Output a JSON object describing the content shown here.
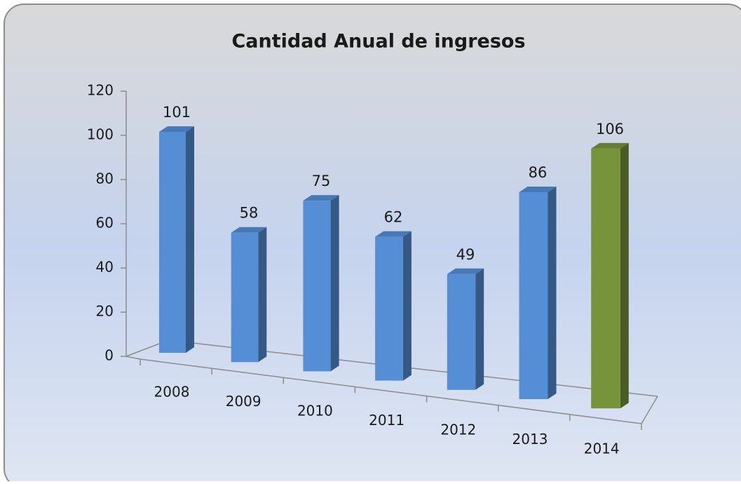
{
  "chart_data": {
    "type": "bar3d",
    "title": "Cantidad Anual de ingresos",
    "categories": [
      "2008",
      "2009",
      "2010",
      "2011",
      "2012",
      "2013",
      "2014"
    ],
    "values": [
      101,
      58,
      75,
      62,
      49,
      86,
      106
    ],
    "colors": [
      "#558ed5",
      "#558ed5",
      "#558ed5",
      "#558ed5",
      "#558ed5",
      "#558ed5",
      "#77933c"
    ],
    "ylim": [
      0,
      120
    ],
    "yticks": [
      0,
      20,
      40,
      60,
      80,
      100,
      120
    ]
  }
}
